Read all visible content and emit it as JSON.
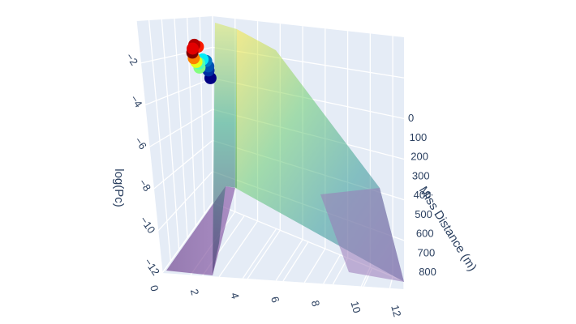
{
  "chart_data": {
    "type": "surface3d",
    "xaxis": {
      "title": "",
      "ticks": [
        "0",
        "2",
        "4",
        "6",
        "8",
        "10",
        "12"
      ],
      "range": [
        0,
        12
      ]
    },
    "yaxis": {
      "title": "Miss Distance (m)",
      "ticks": [
        "0",
        "100",
        "200",
        "300",
        "400",
        "500",
        "600",
        "700",
        "800"
      ],
      "range": [
        0,
        850
      ]
    },
    "zaxis": {
      "title": "log(Pc)",
      "ticks": [
        "-2",
        "-4",
        "-6",
        "-8",
        "-10",
        "-12"
      ],
      "range": [
        -12,
        0
      ]
    },
    "surface": {
      "colorscale": "viridis",
      "opacity": 0.55,
      "floor_z": -12
    },
    "scatter": {
      "colorscale": "jet",
      "points": [
        {
          "x": 4.6,
          "y": 60,
          "z": -1.1,
          "c": 0.95
        },
        {
          "x": 4.5,
          "y": 55,
          "z": -1.3,
          "c": 0.9
        },
        {
          "x": 4.2,
          "y": 58,
          "z": -1.5,
          "c": 1.0
        },
        {
          "x": 4.7,
          "y": 72,
          "z": -1.2,
          "c": 0.85
        },
        {
          "x": 4.3,
          "y": 62,
          "z": -1.8,
          "c": 0.75
        },
        {
          "x": 4.4,
          "y": 70,
          "z": -2.0,
          "c": 0.6
        },
        {
          "x": 4.8,
          "y": 75,
          "z": -2.1,
          "c": 0.45
        },
        {
          "x": 4.5,
          "y": 80,
          "z": -2.3,
          "c": 0.5
        },
        {
          "x": 5.2,
          "y": 82,
          "z": -1.9,
          "c": 0.35
        },
        {
          "x": 5.6,
          "y": 90,
          "z": -2.0,
          "c": 0.2
        },
        {
          "x": 5.8,
          "y": 95,
          "z": -2.3,
          "c": 0.15
        },
        {
          "x": 5.5,
          "y": 100,
          "z": -2.5,
          "c": 0.1
        },
        {
          "x": 5.3,
          "y": 110,
          "z": -2.9,
          "c": 0.0
        }
      ]
    }
  }
}
